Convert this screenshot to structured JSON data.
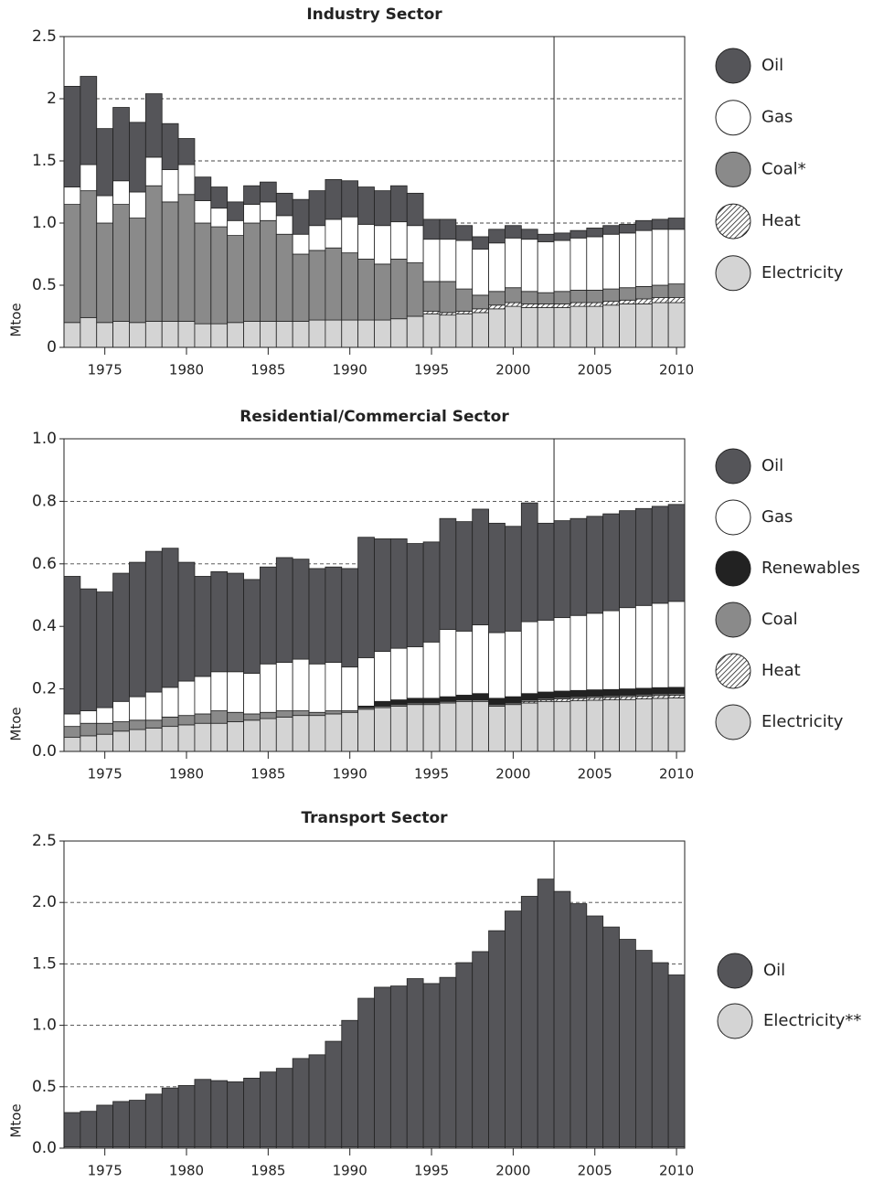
{
  "chart_data": [
    {
      "type": "stacked-bar",
      "title": "Industry Sector",
      "y_label": "Mtoe",
      "x": [
        1973,
        1974,
        1975,
        1976,
        1977,
        1978,
        1979,
        1980,
        1981,
        1982,
        1983,
        1984,
        1985,
        1986,
        1987,
        1988,
        1989,
        1990,
        1991,
        1992,
        1993,
        1994,
        1995,
        1996,
        1997,
        1998,
        1999,
        2000,
        2001,
        2002,
        2003,
        2004,
        2005,
        2006,
        2007,
        2008,
        2009,
        2010
      ],
      "xlim": [
        1972.5,
        2010.5
      ],
      "xticks": [
        1975,
        1980,
        1985,
        1990,
        1995,
        2000,
        2005,
        2010
      ],
      "ylim": [
        0,
        2.5
      ],
      "yticks": [
        0,
        0.5,
        {
          "value": 1,
          "label": "1.0"
        },
        1.5,
        2,
        2.5
      ],
      "grid": true,
      "vline": 2002.5,
      "legend": "right",
      "series": [
        {
          "name": "Electricity",
          "color": "#d4d4d4",
          "values": [
            0.2,
            0.24,
            0.2,
            0.21,
            0.2,
            0.21,
            0.21,
            0.21,
            0.19,
            0.19,
            0.2,
            0.21,
            0.21,
            0.21,
            0.21,
            0.22,
            0.22,
            0.22,
            0.22,
            0.22,
            0.23,
            0.25,
            0.27,
            0.26,
            0.27,
            0.28,
            0.31,
            0.33,
            0.32,
            0.32,
            0.32,
            0.33,
            0.33,
            0.34,
            0.35,
            0.35,
            0.36,
            0.36
          ]
        },
        {
          "name": "Heat",
          "color": "#ffffff",
          "pattern": "hatch",
          "values": [
            0,
            0,
            0,
            0,
            0,
            0,
            0,
            0,
            0,
            0,
            0,
            0,
            0,
            0,
            0,
            0,
            0,
            0,
            0,
            0,
            0,
            0,
            0.02,
            0.02,
            0.02,
            0.03,
            0.03,
            0.03,
            0.03,
            0.03,
            0.03,
            0.03,
            0.03,
            0.03,
            0.03,
            0.04,
            0.04,
            0.04
          ]
        },
        {
          "name": "Coal*",
          "color": "#8a8a8a",
          "values": [
            0.95,
            1.02,
            0.8,
            0.94,
            0.84,
            1.09,
            0.96,
            1.02,
            0.81,
            0.78,
            0.7,
            0.79,
            0.81,
            0.7,
            0.54,
            0.56,
            0.58,
            0.54,
            0.49,
            0.45,
            0.48,
            0.43,
            0.24,
            0.25,
            0.18,
            0.11,
            0.11,
            0.12,
            0.1,
            0.09,
            0.1,
            0.1,
            0.1,
            0.1,
            0.1,
            0.1,
            0.1,
            0.11
          ]
        },
        {
          "name": "Gas",
          "color": "#ffffff",
          "values": [
            0.14,
            0.21,
            0.22,
            0.19,
            0.21,
            0.23,
            0.26,
            0.24,
            0.18,
            0.15,
            0.12,
            0.15,
            0.15,
            0.15,
            0.16,
            0.2,
            0.23,
            0.29,
            0.28,
            0.31,
            0.3,
            0.3,
            0.34,
            0.34,
            0.39,
            0.37,
            0.39,
            0.4,
            0.42,
            0.41,
            0.41,
            0.42,
            0.43,
            0.44,
            0.44,
            0.45,
            0.45,
            0.44
          ]
        },
        {
          "name": "Oil",
          "color": "#555559",
          "values": [
            0.81,
            0.71,
            0.54,
            0.59,
            0.56,
            0.51,
            0.37,
            0.21,
            0.19,
            0.17,
            0.15,
            0.15,
            0.16,
            0.18,
            0.28,
            0.28,
            0.32,
            0.29,
            0.3,
            0.28,
            0.29,
            0.26,
            0.16,
            0.16,
            0.12,
            0.1,
            0.11,
            0.1,
            0.08,
            0.06,
            0.06,
            0.06,
            0.07,
            0.07,
            0.07,
            0.08,
            0.08,
            0.09
          ]
        }
      ]
    },
    {
      "type": "stacked-bar",
      "title": "Residential/Commercial Sector",
      "y_label": "Mtoe",
      "x": [
        1973,
        1974,
        1975,
        1976,
        1977,
        1978,
        1979,
        1980,
        1981,
        1982,
        1983,
        1984,
        1985,
        1986,
        1987,
        1988,
        1989,
        1990,
        1991,
        1992,
        1993,
        1994,
        1995,
        1996,
        1997,
        1998,
        1999,
        2000,
        2001,
        2002,
        2003,
        2004,
        2005,
        2006,
        2007,
        2008,
        2009,
        2010
      ],
      "xlim": [
        1972.5,
        2010.5
      ],
      "xticks": [
        1975,
        1980,
        1985,
        1990,
        1995,
        2000,
        2005,
        2010
      ],
      "ylim": [
        0,
        1
      ],
      "yticks": [
        {
          "value": 0,
          "label": "0.0"
        },
        0.2,
        0.4,
        0.6,
        0.8,
        {
          "value": 1,
          "label": "1.0"
        }
      ],
      "grid": true,
      "vline": 2002.5,
      "legend": "right",
      "series": [
        {
          "name": "Electricity",
          "color": "#d4d4d4",
          "values": [
            0.045,
            0.05,
            0.055,
            0.065,
            0.07,
            0.075,
            0.08,
            0.085,
            0.09,
            0.09,
            0.095,
            0.1,
            0.105,
            0.11,
            0.115,
            0.115,
            0.12,
            0.125,
            0.135,
            0.14,
            0.145,
            0.15,
            0.15,
            0.155,
            0.16,
            0.16,
            0.145,
            0.15,
            0.155,
            0.16,
            0.16,
            0.162,
            0.164,
            0.165,
            0.166,
            0.168,
            0.17,
            0.171
          ]
        },
        {
          "name": "Heat",
          "color": "#ffffff",
          "pattern": "hatch",
          "values": [
            0,
            0,
            0,
            0,
            0,
            0,
            0,
            0,
            0,
            0,
            0,
            0,
            0,
            0,
            0,
            0,
            0,
            0,
            0,
            0,
            0,
            0,
            0,
            0,
            0,
            0,
            0,
            0,
            0.005,
            0.005,
            0.008,
            0.008,
            0.008,
            0.008,
            0.009,
            0.009,
            0.009,
            0.009
          ]
        },
        {
          "name": "Coal",
          "color": "#8a8a8a",
          "values": [
            0.035,
            0.04,
            0.035,
            0.03,
            0.03,
            0.025,
            0.03,
            0.03,
            0.03,
            0.04,
            0.03,
            0.02,
            0.02,
            0.02,
            0.015,
            0.01,
            0.01,
            0.005,
            0.005,
            0.005,
            0.005,
            0.005,
            0.005,
            0.005,
            0.005,
            0.005,
            0.005,
            0.005,
            0.005,
            0.005,
            0.005,
            0.005,
            0.005,
            0.005,
            0.005,
            0.005,
            0.005,
            0.005
          ]
        },
        {
          "name": "Renewables",
          "color": "#222222",
          "values": [
            0,
            0,
            0,
            0,
            0,
            0,
            0,
            0,
            0,
            0,
            0,
            0,
            0,
            0,
            0,
            0,
            0,
            0,
            0.005,
            0.015,
            0.015,
            0.015,
            0.015,
            0.015,
            0.015,
            0.02,
            0.02,
            0.02,
            0.02,
            0.02,
            0.02,
            0.02,
            0.02,
            0.02,
            0.02,
            0.02,
            0.02,
            0.02
          ]
        },
        {
          "name": "Gas",
          "color": "#ffffff",
          "values": [
            0.04,
            0.04,
            0.05,
            0.065,
            0.075,
            0.09,
            0.095,
            0.11,
            0.12,
            0.125,
            0.13,
            0.13,
            0.155,
            0.155,
            0.165,
            0.155,
            0.155,
            0.14,
            0.155,
            0.16,
            0.165,
            0.165,
            0.18,
            0.215,
            0.205,
            0.22,
            0.21,
            0.21,
            0.23,
            0.23,
            0.235,
            0.24,
            0.245,
            0.252,
            0.26,
            0.265,
            0.27,
            0.275
          ]
        },
        {
          "name": "Oil",
          "color": "#555559",
          "values": [
            0.44,
            0.39,
            0.37,
            0.41,
            0.43,
            0.45,
            0.445,
            0.38,
            0.32,
            0.32,
            0.315,
            0.3,
            0.31,
            0.335,
            0.32,
            0.305,
            0.305,
            0.315,
            0.385,
            0.36,
            0.35,
            0.33,
            0.32,
            0.355,
            0.35,
            0.37,
            0.35,
            0.335,
            0.38,
            0.31,
            0.31,
            0.31,
            0.31,
            0.31,
            0.31,
            0.31,
            0.31,
            0.31
          ]
        }
      ]
    },
    {
      "type": "stacked-bar",
      "title": "Transport Sector",
      "y_label": "Mtoe",
      "x": [
        1973,
        1974,
        1975,
        1976,
        1977,
        1978,
        1979,
        1980,
        1981,
        1982,
        1983,
        1984,
        1985,
        1986,
        1987,
        1988,
        1989,
        1990,
        1991,
        1992,
        1993,
        1994,
        1995,
        1996,
        1997,
        1998,
        1999,
        2000,
        2001,
        2002,
        2003,
        2004,
        2005,
        2006,
        2007,
        2008,
        2009,
        2010
      ],
      "xlim": [
        1972.5,
        2010.5
      ],
      "xticks": [
        1975,
        1980,
        1985,
        1990,
        1995,
        2000,
        2005,
        2010
      ],
      "ylim": [
        0,
        2.5
      ],
      "yticks": [
        {
          "value": 0,
          "label": "0.0"
        },
        0.5,
        {
          "value": 1,
          "label": "1.0"
        },
        1.5,
        {
          "value": 2,
          "label": "2.0"
        },
        2.5
      ],
      "grid": true,
      "vline": 2002.5,
      "legend": "right",
      "series": [
        {
          "name": "Electricity**",
          "color": "#d4d4d4",
          "values": [
            0.01,
            0.01,
            0.01,
            0.01,
            0.01,
            0.01,
            0.01,
            0.01,
            0.01,
            0.01,
            0.01,
            0.01,
            0.01,
            0.01,
            0.01,
            0.01,
            0.01,
            0.01,
            0.01,
            0.01,
            0.01,
            0.01,
            0.01,
            0.01,
            0.01,
            0.01,
            0.01,
            0.01,
            0.01,
            0.01,
            0.01,
            0.01,
            0.01,
            0.01,
            0.01,
            0.01,
            0.01,
            0.01
          ]
        },
        {
          "name": "Oil",
          "color": "#555559",
          "values": [
            0.28,
            0.29,
            0.34,
            0.37,
            0.38,
            0.43,
            0.48,
            0.5,
            0.55,
            0.54,
            0.53,
            0.56,
            0.61,
            0.64,
            0.72,
            0.75,
            0.86,
            1.03,
            1.21,
            1.3,
            1.31,
            1.37,
            1.33,
            1.38,
            1.5,
            1.59,
            1.76,
            1.92,
            2.04,
            2.18,
            2.08,
            1.98,
            1.88,
            1.79,
            1.69,
            1.6,
            1.5,
            1.4
          ]
        }
      ]
    }
  ]
}
